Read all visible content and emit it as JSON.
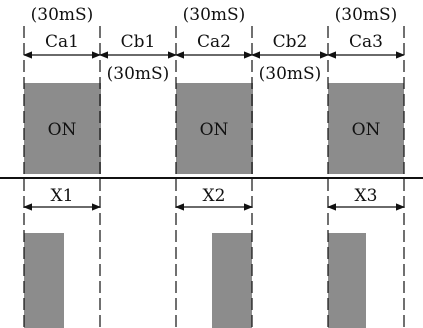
{
  "timing": {
    "duration_top": [
      "(30mS)",
      "(30mS)",
      "(30mS)"
    ],
    "duration_gap": [
      "(30mS)",
      "(30mS)"
    ],
    "intervals": [
      "Ca1",
      "Cb1",
      "Ca2",
      "Cb2",
      "Ca3"
    ],
    "on_blocks": [
      "ON",
      "ON",
      "ON"
    ],
    "x_spans": [
      "X1",
      "X2",
      "X3"
    ]
  },
  "colors": {
    "block": "#8c8c8c",
    "line": "#111111",
    "background": "#ffffff"
  }
}
